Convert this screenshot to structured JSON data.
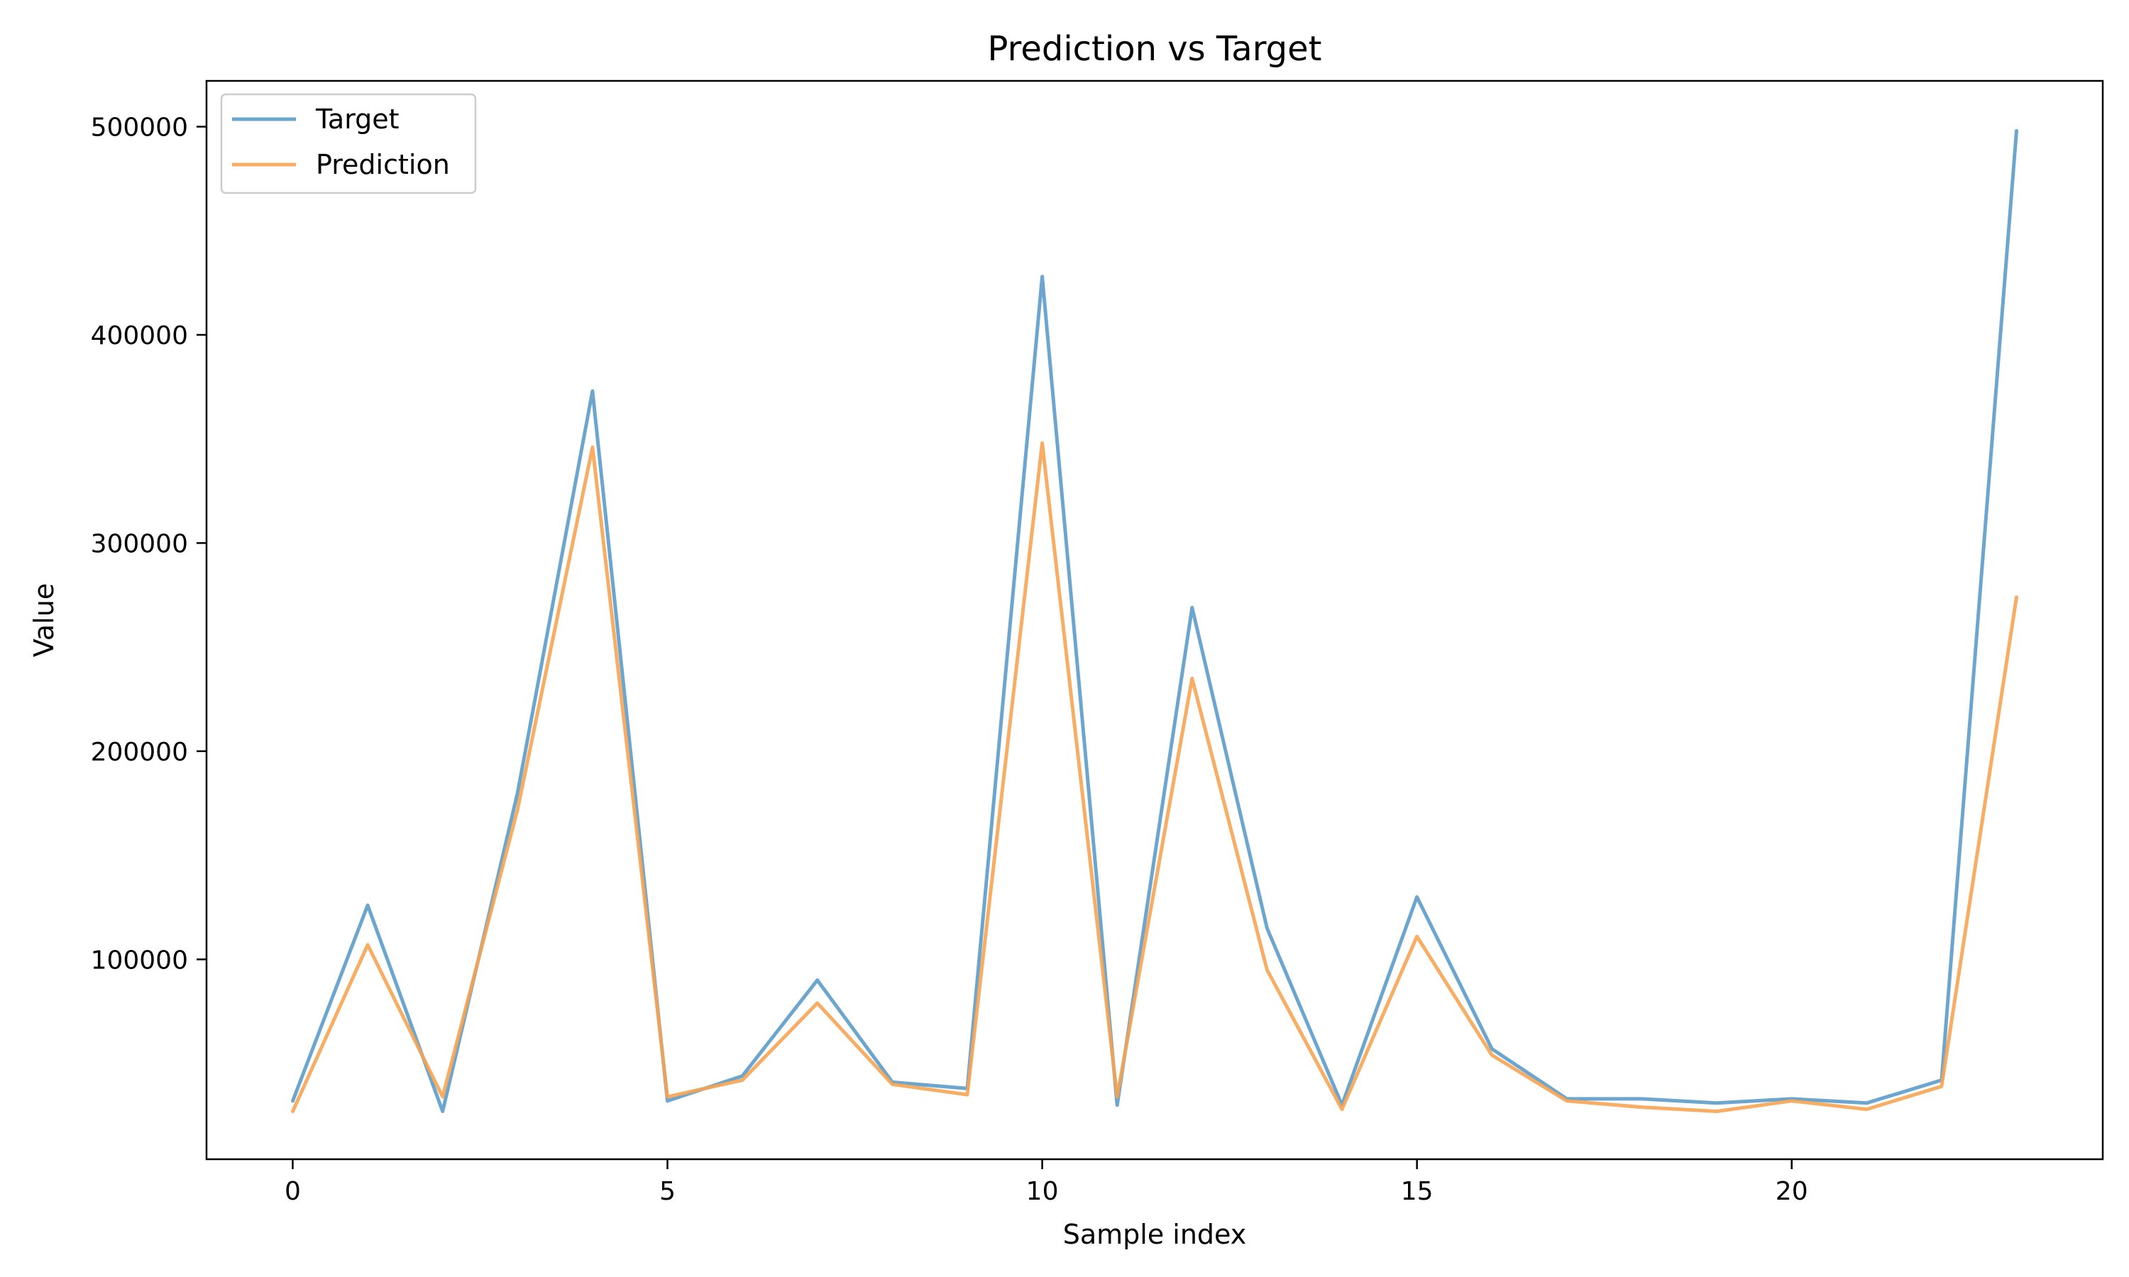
{
  "chart_data": {
    "type": "line",
    "title": "Prediction vs Target",
    "xlabel": "Sample index",
    "ylabel": "Value",
    "x": [
      0,
      1,
      2,
      3,
      4,
      5,
      6,
      7,
      8,
      9,
      10,
      11,
      12,
      13,
      14,
      15,
      16,
      17,
      18,
      19,
      20,
      21,
      22,
      23
    ],
    "xlim": [
      -1.15,
      24.15
    ],
    "ylim": [
      4000,
      522000
    ],
    "xticks": [
      0,
      5,
      10,
      15,
      20
    ],
    "yticks": [
      100000,
      200000,
      300000,
      400000,
      500000
    ],
    "grid": false,
    "legend_position": "top-left",
    "series": [
      {
        "name": "Target",
        "color": "#5c9cca",
        "values": [
          32000,
          126000,
          27000,
          180000,
          373000,
          32000,
          44000,
          90000,
          41000,
          38000,
          428000,
          30000,
          269000,
          115000,
          30000,
          130000,
          57000,
          33000,
          33000,
          31000,
          33000,
          31000,
          42000,
          498000
        ]
      },
      {
        "name": "Prediction",
        "color": "#f6a452",
        "values": [
          27000,
          107000,
          34000,
          172000,
          346000,
          34000,
          42000,
          79000,
          40000,
          35000,
          348000,
          34000,
          235000,
          95000,
          28000,
          111000,
          54000,
          32000,
          29000,
          27000,
          32000,
          28000,
          39000,
          274000
        ]
      }
    ]
  }
}
